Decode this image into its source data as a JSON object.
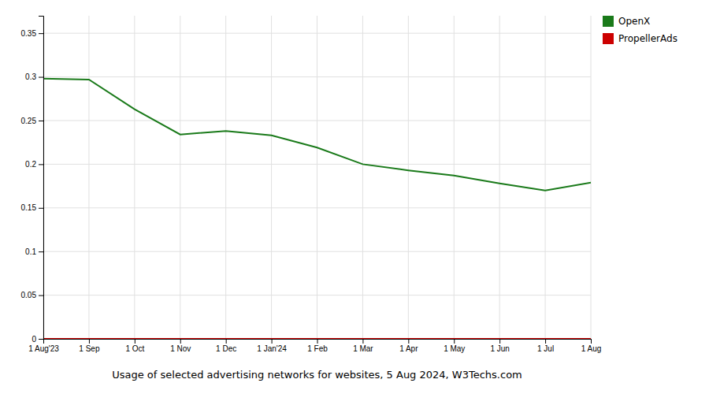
{
  "chart_data": {
    "type": "line",
    "title": "Usage of selected advertising networks for websites, 5 Aug 2024, W3Techs.com",
    "categories": [
      "1 Aug'23",
      "1 Sep",
      "1 Oct",
      "1 Nov",
      "1 Dec",
      "1 Jan'24",
      "1 Feb",
      "1 Mar",
      "1 Apr",
      "1 May",
      "1 Jun",
      "1 Jul",
      "1 Aug"
    ],
    "series": [
      {
        "name": "OpenX",
        "color": "#1a7a1a",
        "values": [
          0.298,
          0.297,
          0.263,
          0.234,
          0.238,
          0.233,
          0.219,
          0.2,
          0.193,
          0.187,
          0.178,
          0.17,
          0.179
        ]
      },
      {
        "name": "PropellerAds",
        "color": "#cc0000",
        "values": [
          0,
          0,
          0,
          0,
          0,
          0,
          0,
          0,
          0,
          0,
          0,
          0,
          0
        ]
      }
    ],
    "ylim": [
      0,
      0.37
    ],
    "yticks": [
      0,
      0.05,
      0.1,
      0.15,
      0.2,
      0.25,
      0.3,
      0.35
    ],
    "grid": true,
    "legend": "upper right"
  }
}
